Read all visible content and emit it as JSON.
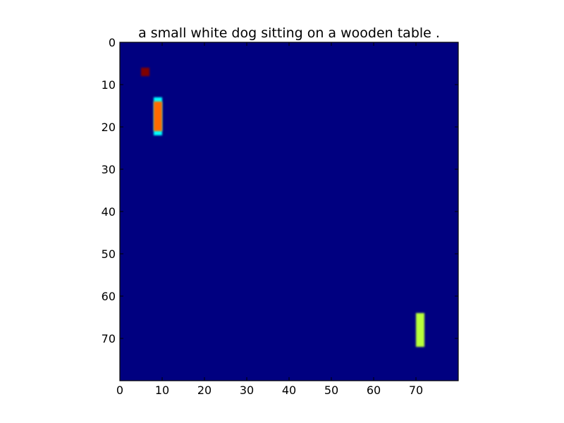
{
  "chart_data": {
    "type": "heatmap",
    "title": "a small white dog sitting on a wooden table .",
    "xlabel": "",
    "ylabel": "",
    "grid": false,
    "xlim": [
      0,
      80
    ],
    "ylim": [
      80,
      0
    ],
    "y_axis_inverted": true,
    "colormap": "jet",
    "background_value": 0.0,
    "background_color": "#000080",
    "x_ticks": [
      0,
      10,
      20,
      30,
      40,
      50,
      60,
      70
    ],
    "y_ticks": [
      0,
      10,
      20,
      30,
      40,
      50,
      60,
      70
    ],
    "cells": [
      {
        "x": 5,
        "y": 6,
        "w": 2,
        "h": 2,
        "value": 1.0,
        "color": "#800000"
      },
      {
        "x": 8,
        "y": 13,
        "w": 2,
        "h": 9,
        "value": 0.35,
        "color": "#00ffff"
      },
      {
        "x": 8,
        "y": 14,
        "w": 2,
        "h": 7,
        "value": 0.8,
        "color": "#ff6a00"
      },
      {
        "x": 70,
        "y": 64,
        "w": 2,
        "h": 8,
        "value": 0.65,
        "color": "#b8ff3a"
      }
    ]
  }
}
